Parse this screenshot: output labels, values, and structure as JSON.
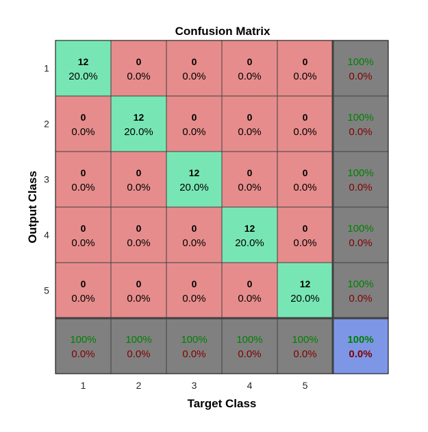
{
  "chart_data": {
    "type": "heatmap",
    "title": "Confusion Matrix",
    "xlabel": "Target Class",
    "ylabel": "Output Class",
    "x_tick_labels": [
      "1",
      "2",
      "3",
      "4",
      "5"
    ],
    "y_tick_labels": [
      "1",
      "2",
      "3",
      "4",
      "5"
    ],
    "matrix": {
      "counts": [
        [
          12,
          0,
          0,
          0,
          0
        ],
        [
          0,
          12,
          0,
          0,
          0
        ],
        [
          0,
          0,
          12,
          0,
          0
        ],
        [
          0,
          0,
          0,
          12,
          0
        ],
        [
          0,
          0,
          0,
          0,
          12
        ]
      ],
      "percents": [
        [
          "20.0%",
          "0.0%",
          "0.0%",
          "0.0%",
          "0.0%"
        ],
        [
          "0.0%",
          "20.0%",
          "0.0%",
          "0.0%",
          "0.0%"
        ],
        [
          "0.0%",
          "0.0%",
          "20.0%",
          "0.0%",
          "0.0%"
        ],
        [
          "0.0%",
          "0.0%",
          "0.0%",
          "20.0%",
          "0.0%"
        ],
        [
          "0.0%",
          "0.0%",
          "0.0%",
          "0.0%",
          "20.0%"
        ]
      ]
    },
    "row_summary": [
      {
        "correct": "100%",
        "incorrect": "0.0%"
      },
      {
        "correct": "100%",
        "incorrect": "0.0%"
      },
      {
        "correct": "100%",
        "incorrect": "0.0%"
      },
      {
        "correct": "100%",
        "incorrect": "0.0%"
      },
      {
        "correct": "100%",
        "incorrect": "0.0%"
      }
    ],
    "column_summary": [
      {
        "correct": "100%",
        "incorrect": "0.0%"
      },
      {
        "correct": "100%",
        "incorrect": "0.0%"
      },
      {
        "correct": "100%",
        "incorrect": "0.0%"
      },
      {
        "correct": "100%",
        "incorrect": "0.0%"
      },
      {
        "correct": "100%",
        "incorrect": "0.0%"
      }
    ],
    "overall": {
      "correct": "100%",
      "incorrect": "0.0%"
    },
    "grid": true,
    "legend": "none"
  },
  "colors": {
    "correct_cell": "#78E6B4",
    "incorrect_cell": "#E68C8C",
    "summary_cell": "#808080",
    "overall_cell": "#7D96E6",
    "border": "#404040",
    "correct_text": "#008000",
    "incorrect_text": "#800000",
    "text": "#000000"
  }
}
